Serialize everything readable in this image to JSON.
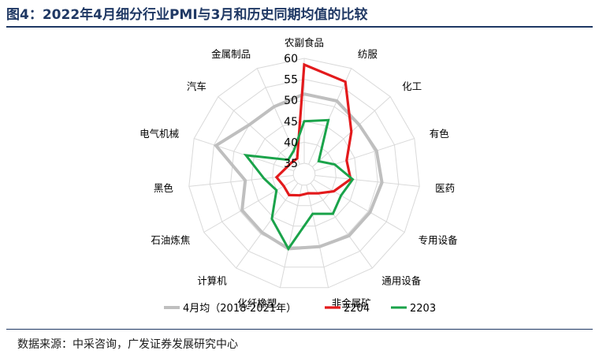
{
  "header": {
    "title": "图4：2022年4月细分行业PMI与3月和历史同期均值的比较"
  },
  "footer": {
    "source": "数据来源：中采咨询，广发证券发展研究中心"
  },
  "chart_data": {
    "type": "radar",
    "categories": [
      "农副食品",
      "纺服",
      "化工",
      "有色",
      "医药",
      "专用设备",
      "通用设备",
      "非金属矿",
      "化纤橡塑",
      "计算机",
      "石油炼焦",
      "黑色",
      "电气机械",
      "汽车",
      "金属制品"
    ],
    "rlim": [
      35,
      60
    ],
    "ticks": [
      35,
      40,
      45,
      50,
      55,
      60
    ],
    "series": [
      {
        "name": "4月均（2018-2021年）",
        "color": "#bfbfbf",
        "values": [
          51.5,
          51.5,
          50,
          50.5,
          51,
          50.5,
          50.5,
          50,
          50.5,
          49.5,
          49.5,
          46.5,
          54.5,
          50,
          50
        ]
      },
      {
        "name": "2204",
        "color": "#e31a1c",
        "values": [
          58.5,
          56.5,
          47.5,
          43,
          43.5,
          40.5,
          38,
          37,
          37.5,
          38.5,
          38,
          39,
          37,
          36.5,
          36.5
        ]
      },
      {
        "name": "2203",
        "color": "#1aa34a",
        "values": [
          45,
          46.5,
          37,
          40,
          44,
          42.5,
          44,
          42,
          50.5,
          45.5,
          40,
          42,
          47,
          37.5,
          38.5
        ]
      }
    ],
    "legend_position": "bottom",
    "grid": true
  }
}
